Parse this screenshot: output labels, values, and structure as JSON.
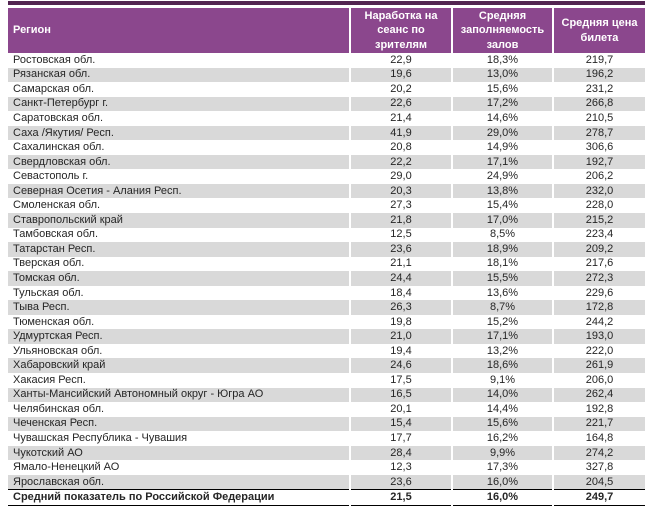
{
  "table": {
    "columns": [
      "Регион",
      "Наработка на сеанс по зрителям",
      "Средняя заполняемость залов",
      "Средняя цена билета"
    ],
    "rows": [
      [
        "Ростовская обл.",
        "22,9",
        "18,3%",
        "219,7"
      ],
      [
        "Рязанская обл.",
        "19,6",
        "13,0%",
        "196,2"
      ],
      [
        "Самарская обл.",
        "20,2",
        "15,6%",
        "231,2"
      ],
      [
        "Санкт-Петербург г.",
        "22,6",
        "17,2%",
        "266,8"
      ],
      [
        "Саратовская обл.",
        "21,4",
        "14,6%",
        "210,5"
      ],
      [
        "Саха /Якутия/ Респ.",
        "41,9",
        "29,0%",
        "278,7"
      ],
      [
        "Сахалинская обл.",
        "20,8",
        "14,9%",
        "306,6"
      ],
      [
        "Свердловская обл.",
        "22,2",
        "17,1%",
        "192,7"
      ],
      [
        "Севастополь г.",
        "29,0",
        "24,9%",
        "206,2"
      ],
      [
        "Северная Осетия - Алания Респ.",
        "20,3",
        "13,8%",
        "232,0"
      ],
      [
        "Смоленская обл.",
        "27,3",
        "15,4%",
        "228,0"
      ],
      [
        "Ставропольский край",
        "21,8",
        "17,0%",
        "215,2"
      ],
      [
        "Тамбовская обл.",
        "12,5",
        "8,5%",
        "223,4"
      ],
      [
        "Татарстан Респ.",
        "23,6",
        "18,9%",
        "209,2"
      ],
      [
        "Тверская обл.",
        "21,1",
        "18,1%",
        "217,6"
      ],
      [
        "Томская обл.",
        "24,4",
        "15,5%",
        "272,3"
      ],
      [
        "Тульская обл.",
        "18,4",
        "13,6%",
        "229,6"
      ],
      [
        "Тыва Респ.",
        "26,3",
        "8,7%",
        "172,8"
      ],
      [
        "Тюменская обл.",
        "19,8",
        "15,2%",
        "244,2"
      ],
      [
        "Удмуртская Респ.",
        "21,0",
        "17,1%",
        "193,0"
      ],
      [
        "Ульяновская обл.",
        "19,4",
        "13,2%",
        "222,0"
      ],
      [
        "Хабаровский край",
        "24,6",
        "18,6%",
        "261,9"
      ],
      [
        "Хакасия Респ.",
        "17,5",
        "9,1%",
        "206,0"
      ],
      [
        "Ханты-Мансийский Автономный округ - Югра АО",
        "16,5",
        "14,0%",
        "262,4"
      ],
      [
        "Челябинская обл.",
        "20,1",
        "14,4%",
        "192,8"
      ],
      [
        "Чеченская Респ.",
        "15,4",
        "15,6%",
        "221,7"
      ],
      [
        "Чувашская Республика - Чувашия",
        "17,7",
        "16,2%",
        "164,8"
      ],
      [
        "Чукотский АО",
        "28,4",
        "9,9%",
        "274,2"
      ],
      [
        "Ямало-Ненецкий АО",
        "12,3",
        "17,3%",
        "327,8"
      ],
      [
        "Ярославская обл.",
        "23,6",
        "16,0%",
        "204,5"
      ]
    ],
    "footer": [
      "Средний показатель по Российской Федерации",
      "21,5",
      "16,0%",
      "249,7"
    ],
    "colors": {
      "accent_bar": "#522451",
      "header_bg": "#8b478d",
      "header_text": "#ffffff",
      "stripe": "#d9d9d9",
      "body_text": "#262626",
      "border": "#000000"
    }
  }
}
